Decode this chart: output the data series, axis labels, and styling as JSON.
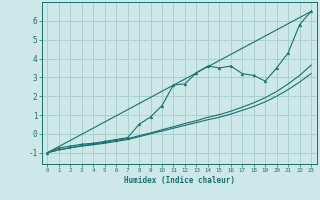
{
  "xlabel": "Humidex (Indice chaleur)",
  "bg_color": "#cce8e8",
  "line_color": "#1a7070",
  "grid_color": "#aacece",
  "xlim": [
    -0.5,
    23.5
  ],
  "ylim": [
    -1.6,
    7.0
  ],
  "xticks": [
    0,
    1,
    2,
    3,
    4,
    5,
    6,
    7,
    8,
    9,
    10,
    11,
    12,
    13,
    14,
    15,
    16,
    17,
    18,
    19,
    20,
    21,
    22,
    23
  ],
  "yticks": [
    -1,
    0,
    1,
    2,
    3,
    4,
    5,
    6
  ],
  "line1_x": [
    0,
    1,
    2,
    3,
    4,
    5,
    6,
    7,
    8,
    9,
    10,
    11,
    12,
    13,
    14,
    15,
    16,
    17,
    18,
    19,
    20,
    21,
    22,
    23
  ],
  "line1_y": [
    -1.0,
    -0.75,
    -0.65,
    -0.55,
    -0.5,
    -0.4,
    -0.3,
    -0.2,
    0.5,
    0.9,
    1.5,
    2.6,
    2.65,
    3.25,
    3.6,
    3.5,
    3.6,
    3.2,
    3.1,
    2.8,
    3.5,
    4.3,
    5.8,
    6.5
  ],
  "line2_x": [
    0,
    1,
    2,
    3,
    4,
    5,
    6,
    7,
    8,
    9,
    10,
    11,
    12,
    13,
    14,
    15,
    16,
    17,
    18,
    19,
    20,
    21,
    22,
    23
  ],
  "line2_y": [
    -1.0,
    -0.85,
    -0.75,
    -0.65,
    -0.58,
    -0.5,
    -0.4,
    -0.3,
    -0.15,
    0.0,
    0.15,
    0.3,
    0.45,
    0.6,
    0.75,
    0.88,
    1.05,
    1.25,
    1.45,
    1.7,
    2.0,
    2.35,
    2.75,
    3.2
  ],
  "line3_x": [
    0,
    1,
    2,
    3,
    4,
    5,
    6,
    7,
    8,
    9,
    10,
    11,
    12,
    13,
    14,
    15,
    16,
    17,
    18,
    19,
    20,
    21,
    22,
    23
  ],
  "line3_y": [
    -1.0,
    -0.85,
    -0.73,
    -0.62,
    -0.54,
    -0.45,
    -0.35,
    -0.25,
    -0.1,
    0.05,
    0.22,
    0.38,
    0.55,
    0.7,
    0.88,
    1.02,
    1.2,
    1.42,
    1.65,
    1.92,
    2.25,
    2.65,
    3.1,
    3.65
  ],
  "line4_x": [
    0,
    23
  ],
  "line4_y": [
    -1.0,
    6.5
  ]
}
